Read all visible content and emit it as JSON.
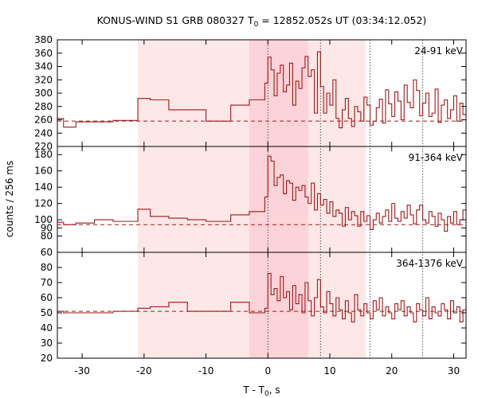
{
  "chart_data": {
    "type": "line",
    "title": "KONUS-WIND S1 GRB 080327 T",
    "title_sub": "0",
    "title_rest": " = 12852.052s UT (03:34:12.052)",
    "xlabel": "T - T",
    "xlabel_sub": "0",
    "xlabel_rest": ", s",
    "ylabel": "counts / 256 ms",
    "xlim": [
      -34,
      32
    ],
    "xticks": [
      -30,
      -20,
      -10,
      0,
      10,
      20,
      30
    ],
    "colors": {
      "line": "#9c1a1a",
      "shade_outer": "#fde7e7",
      "shade_inner": "#fbd3d8"
    },
    "shade_outer": [
      -21,
      15.8
    ],
    "shade_inner": [
      -3,
      6.5
    ],
    "vlines": [
      0,
      8.5,
      16.5,
      25
    ],
    "panels": [
      {
        "band": "24-91 keV",
        "ylim": [
          220,
          380
        ],
        "yticks": [
          220,
          240,
          260,
          280,
          300,
          320,
          340,
          360,
          380
        ],
        "bg": 258,
        "edges": [
          -34,
          -33,
          -31,
          -28,
          -25,
          -21,
          -19,
          -16,
          -13,
          -10,
          -6,
          -3,
          -0.5,
          0
        ],
        "values": [
          262,
          249,
          257,
          257,
          259,
          292,
          290,
          275,
          275,
          258,
          282,
          290,
          315
        ],
        "fine_start": 0,
        "fine_dt": 0.5,
        "fine_values": [
          354,
          335,
          296,
          330,
          342,
          302,
          312,
          345,
          282,
          318,
          307,
          338,
          355,
          325,
          335,
          270,
          362,
          310,
          270,
          300,
          282,
          320,
          262,
          248,
          275,
          292,
          262,
          250,
          280,
          272,
          258,
          294,
          282,
          252,
          258,
          278,
          291,
          255,
          305,
          284,
          265,
          302,
          288,
          260,
          312,
          286,
          278,
          320,
          304,
          266,
          285,
          300,
          265,
          270,
          306,
          256,
          282,
          290,
          262,
          275,
          296,
          258,
          285,
          268,
          305,
          270,
          255,
          265,
          294,
          262,
          280,
          305,
          258,
          252,
          288,
          270,
          245,
          280,
          263,
          258,
          290,
          258,
          272,
          254,
          282,
          258,
          262,
          268,
          255,
          248,
          272,
          252,
          232,
          283,
          265,
          262,
          290,
          258,
          268,
          240,
          262,
          255,
          278,
          250,
          260,
          272,
          256,
          266,
          258,
          262,
          258,
          270,
          256,
          262
        ]
      },
      {
        "band": "91-364 keV",
        "ylim": [
          60,
          190
        ],
        "yticks": [
          60,
          80,
          90,
          100,
          120,
          140,
          160,
          180
        ],
        "bg": 94,
        "edges": [
          -34,
          -33,
          -31,
          -28,
          -25,
          -21,
          -19,
          -16,
          -13,
          -10,
          -6,
          -3,
          -0.5,
          0
        ],
        "values": [
          97,
          94,
          96,
          100,
          98,
          113,
          104,
          102,
          100,
          98,
          106,
          110,
          128
        ],
        "fine_start": 0,
        "fine_dt": 0.5,
        "fine_values": [
          178,
          172,
          142,
          152,
          155,
          132,
          148,
          145,
          124,
          140,
          136,
          142,
          128,
          120,
          145,
          112,
          132,
          118,
          125,
          108,
          122,
          104,
          112,
          108,
          92,
          115,
          100,
          110,
          105,
          92,
          110,
          98,
          105,
          88,
          100,
          108,
          96,
          104,
          112,
          98,
          120,
          102,
          98,
          110,
          102,
          118,
          106,
          95,
          112,
          118,
          100,
          96,
          110,
          104,
          92,
          108,
          100,
          86,
          104,
          96,
          110,
          94,
          100,
          112,
          92,
          98,
          108,
          82,
          115,
          100,
          92,
          106,
          88,
          98,
          112,
          94,
          100,
          90,
          106,
          98,
          96,
          112,
          82,
          98,
          102,
          110,
          92,
          104,
          94,
          100,
          88,
          102,
          96,
          110,
          90,
          100,
          94,
          106,
          92,
          98,
          102,
          90,
          112,
          96,
          100,
          104,
          94,
          118,
          96,
          102,
          100,
          96,
          104,
          100
        ]
      },
      {
        "band": "364-1376 keV",
        "ylim": [
          20,
          90
        ],
        "yticks": [
          20,
          30,
          40,
          50,
          60,
          70,
          80
        ],
        "bg": 51,
        "edges": [
          -34,
          -33,
          -31,
          -28,
          -25,
          -21,
          -19,
          -16,
          -13,
          -10,
          -6,
          -3,
          -0.5,
          0
        ],
        "values": [
          51,
          50,
          50,
          50,
          51,
          53,
          54,
          57,
          51,
          51,
          57,
          50,
          53
        ],
        "fine_start": 0,
        "fine_dt": 0.5,
        "fine_values": [
          76,
          62,
          66,
          58,
          74,
          60,
          64,
          52,
          68,
          56,
          62,
          50,
          70,
          58,
          48,
          60,
          72,
          54,
          50,
          64,
          56,
          48,
          60,
          52,
          46,
          58,
          50,
          44,
          62,
          52,
          48,
          56,
          50,
          46,
          58,
          52,
          60,
          48,
          54,
          50,
          46,
          56,
          52,
          58,
          48,
          54,
          50,
          44,
          56,
          52,
          48,
          60,
          46,
          54,
          50,
          48,
          56,
          52,
          46,
          58,
          50,
          54,
          44,
          52,
          48,
          56,
          50,
          46,
          54,
          52,
          48,
          58,
          44,
          52,
          50,
          30,
          56,
          48,
          52,
          46,
          54,
          50,
          48,
          60,
          52,
          46,
          54,
          50,
          48,
          56,
          50,
          44,
          52,
          58,
          48,
          66,
          50,
          52,
          48,
          56,
          46,
          54,
          50,
          58,
          48,
          52,
          50,
          54,
          48,
          52,
          50,
          54,
          52,
          50
        ]
      }
    ]
  }
}
